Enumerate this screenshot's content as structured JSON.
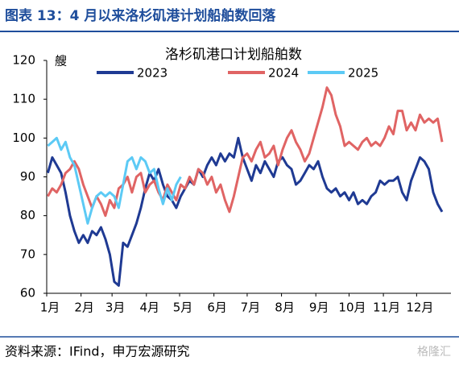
{
  "header": {
    "title": "图表 13：4 月以来洛杉矶港计划船舶数回落"
  },
  "chart_data": {
    "type": "line",
    "title": "洛杉矶港口计划船舶数",
    "unit": "艘",
    "x": [
      1,
      5,
      9,
      13,
      17,
      21,
      25,
      29,
      33,
      37,
      41,
      45,
      49,
      53,
      57,
      61,
      65,
      69,
      73,
      77,
      81,
      85,
      89,
      93,
      97,
      101,
      105,
      109,
      113,
      117,
      121,
      125,
      129,
      133,
      137,
      141,
      145,
      149,
      153,
      157,
      161,
      165,
      169,
      173,
      177,
      181,
      185,
      189,
      193,
      197,
      201,
      205,
      209,
      213,
      217,
      221,
      225,
      229,
      233,
      237,
      241,
      245,
      249,
      253,
      257,
      261,
      265,
      269,
      273,
      277,
      281,
      285,
      289,
      293,
      297,
      301,
      305,
      309,
      313,
      317,
      321,
      325,
      329,
      333,
      337,
      341,
      345,
      349,
      353,
      357
    ],
    "xlim": [
      0,
      365
    ],
    "xticks": [
      {
        "value": 0,
        "label": "1月"
      },
      {
        "value": 31,
        "label": "2月"
      },
      {
        "value": 59,
        "label": "3月"
      },
      {
        "value": 90,
        "label": "4月"
      },
      {
        "value": 120,
        "label": "5月"
      },
      {
        "value": 151,
        "label": "6月"
      },
      {
        "value": 181,
        "label": "7月"
      },
      {
        "value": 212,
        "label": "8月"
      },
      {
        "value": 243,
        "label": "9月"
      },
      {
        "value": 273,
        "label": "10月"
      },
      {
        "value": 304,
        "label": "11月"
      },
      {
        "value": 334,
        "label": "12月"
      }
    ],
    "ylim": [
      60,
      120
    ],
    "yticks": [
      60,
      70,
      80,
      90,
      100,
      110,
      120
    ],
    "series": [
      {
        "name": "2023",
        "color": "#1f3a93",
        "values": [
          91,
          95,
          93,
          91,
          86,
          80,
          76,
          73,
          75,
          73,
          76,
          75,
          77,
          74,
          70,
          63,
          62,
          73,
          72,
          75,
          78,
          82,
          87,
          91,
          89,
          92,
          88,
          85,
          84,
          82,
          85,
          87,
          89,
          88,
          92,
          90,
          93,
          95,
          93,
          96,
          94,
          96,
          95,
          100,
          95,
          92,
          89,
          93,
          91,
          94,
          92,
          90,
          94,
          95,
          93,
          92,
          88,
          89,
          91,
          93,
          92,
          94,
          90,
          87,
          86,
          87,
          85,
          86,
          84,
          86,
          83,
          84,
          83,
          85,
          86,
          89,
          88,
          89,
          89,
          90,
          86,
          84,
          89,
          92,
          95,
          94,
          92,
          86,
          83,
          81
        ]
      },
      {
        "name": "2024",
        "color": "#e06464",
        "values": [
          85,
          87,
          86,
          88,
          91,
          92,
          94,
          92,
          88,
          85,
          82,
          85,
          83,
          80,
          84,
          82,
          87,
          88,
          90,
          86,
          90,
          91,
          86,
          88,
          89,
          86,
          84,
          88,
          86,
          84,
          88,
          87,
          90,
          88,
          92,
          91,
          88,
          90,
          86,
          88,
          84,
          81,
          85,
          90,
          95,
          96,
          94,
          97,
          99,
          95,
          96,
          98,
          93,
          97,
          100,
          102,
          99,
          97,
          94,
          96,
          100,
          104,
          108,
          113,
          111,
          106,
          103,
          98,
          99,
          98,
          97,
          99,
          100,
          98,
          99,
          98,
          100,
          103,
          101,
          107,
          107,
          102,
          104,
          102,
          106,
          104,
          105,
          104,
          105,
          99
        ]
      },
      {
        "name": "2025",
        "color": "#5ccaf5",
        "values": [
          98,
          99,
          100,
          97,
          99,
          95,
          93,
          88,
          83,
          78,
          82,
          85,
          86,
          85,
          86,
          85,
          82,
          88,
          94,
          95,
          92,
          95,
          94,
          91,
          92,
          87,
          83,
          87,
          84,
          88,
          90,
          null,
          null,
          null,
          null,
          null,
          null,
          null,
          null,
          null,
          null,
          null,
          null,
          null,
          null,
          null,
          null,
          null,
          null,
          null,
          null,
          null,
          null,
          null,
          null,
          null,
          null,
          null,
          null,
          null,
          null,
          null,
          null,
          null,
          null,
          null,
          null,
          null,
          null,
          null,
          null,
          null,
          null,
          null,
          null,
          null,
          null,
          null,
          null,
          null,
          null,
          null,
          null,
          null,
          null,
          null,
          null,
          null,
          null,
          null
        ]
      }
    ]
  },
  "footer": {
    "source": "资料来源：IFind，申万宏源研究",
    "watermark": "格隆汇"
  }
}
